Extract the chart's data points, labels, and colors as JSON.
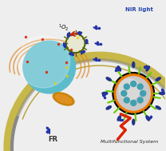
{
  "bg_color": "#eeeeee",
  "title": "Multifunctional System",
  "fr_label": "FR",
  "o2_label": "$^1$O$_2$",
  "nir_label": "NIR light",
  "cell_nucleus_color": "#5bbccc",
  "mitochondria_color": "#c8840a",
  "small_np_border": "#556600",
  "antibody_color": "#2233aa",
  "lightning_color": "#dd2200",
  "arrow_red": "#cc2200",
  "green_spike": "#66cc00",
  "nir_text_color": "#2244aa",
  "membrane_yellow": "#c8b848",
  "membrane_gray": "#888888"
}
